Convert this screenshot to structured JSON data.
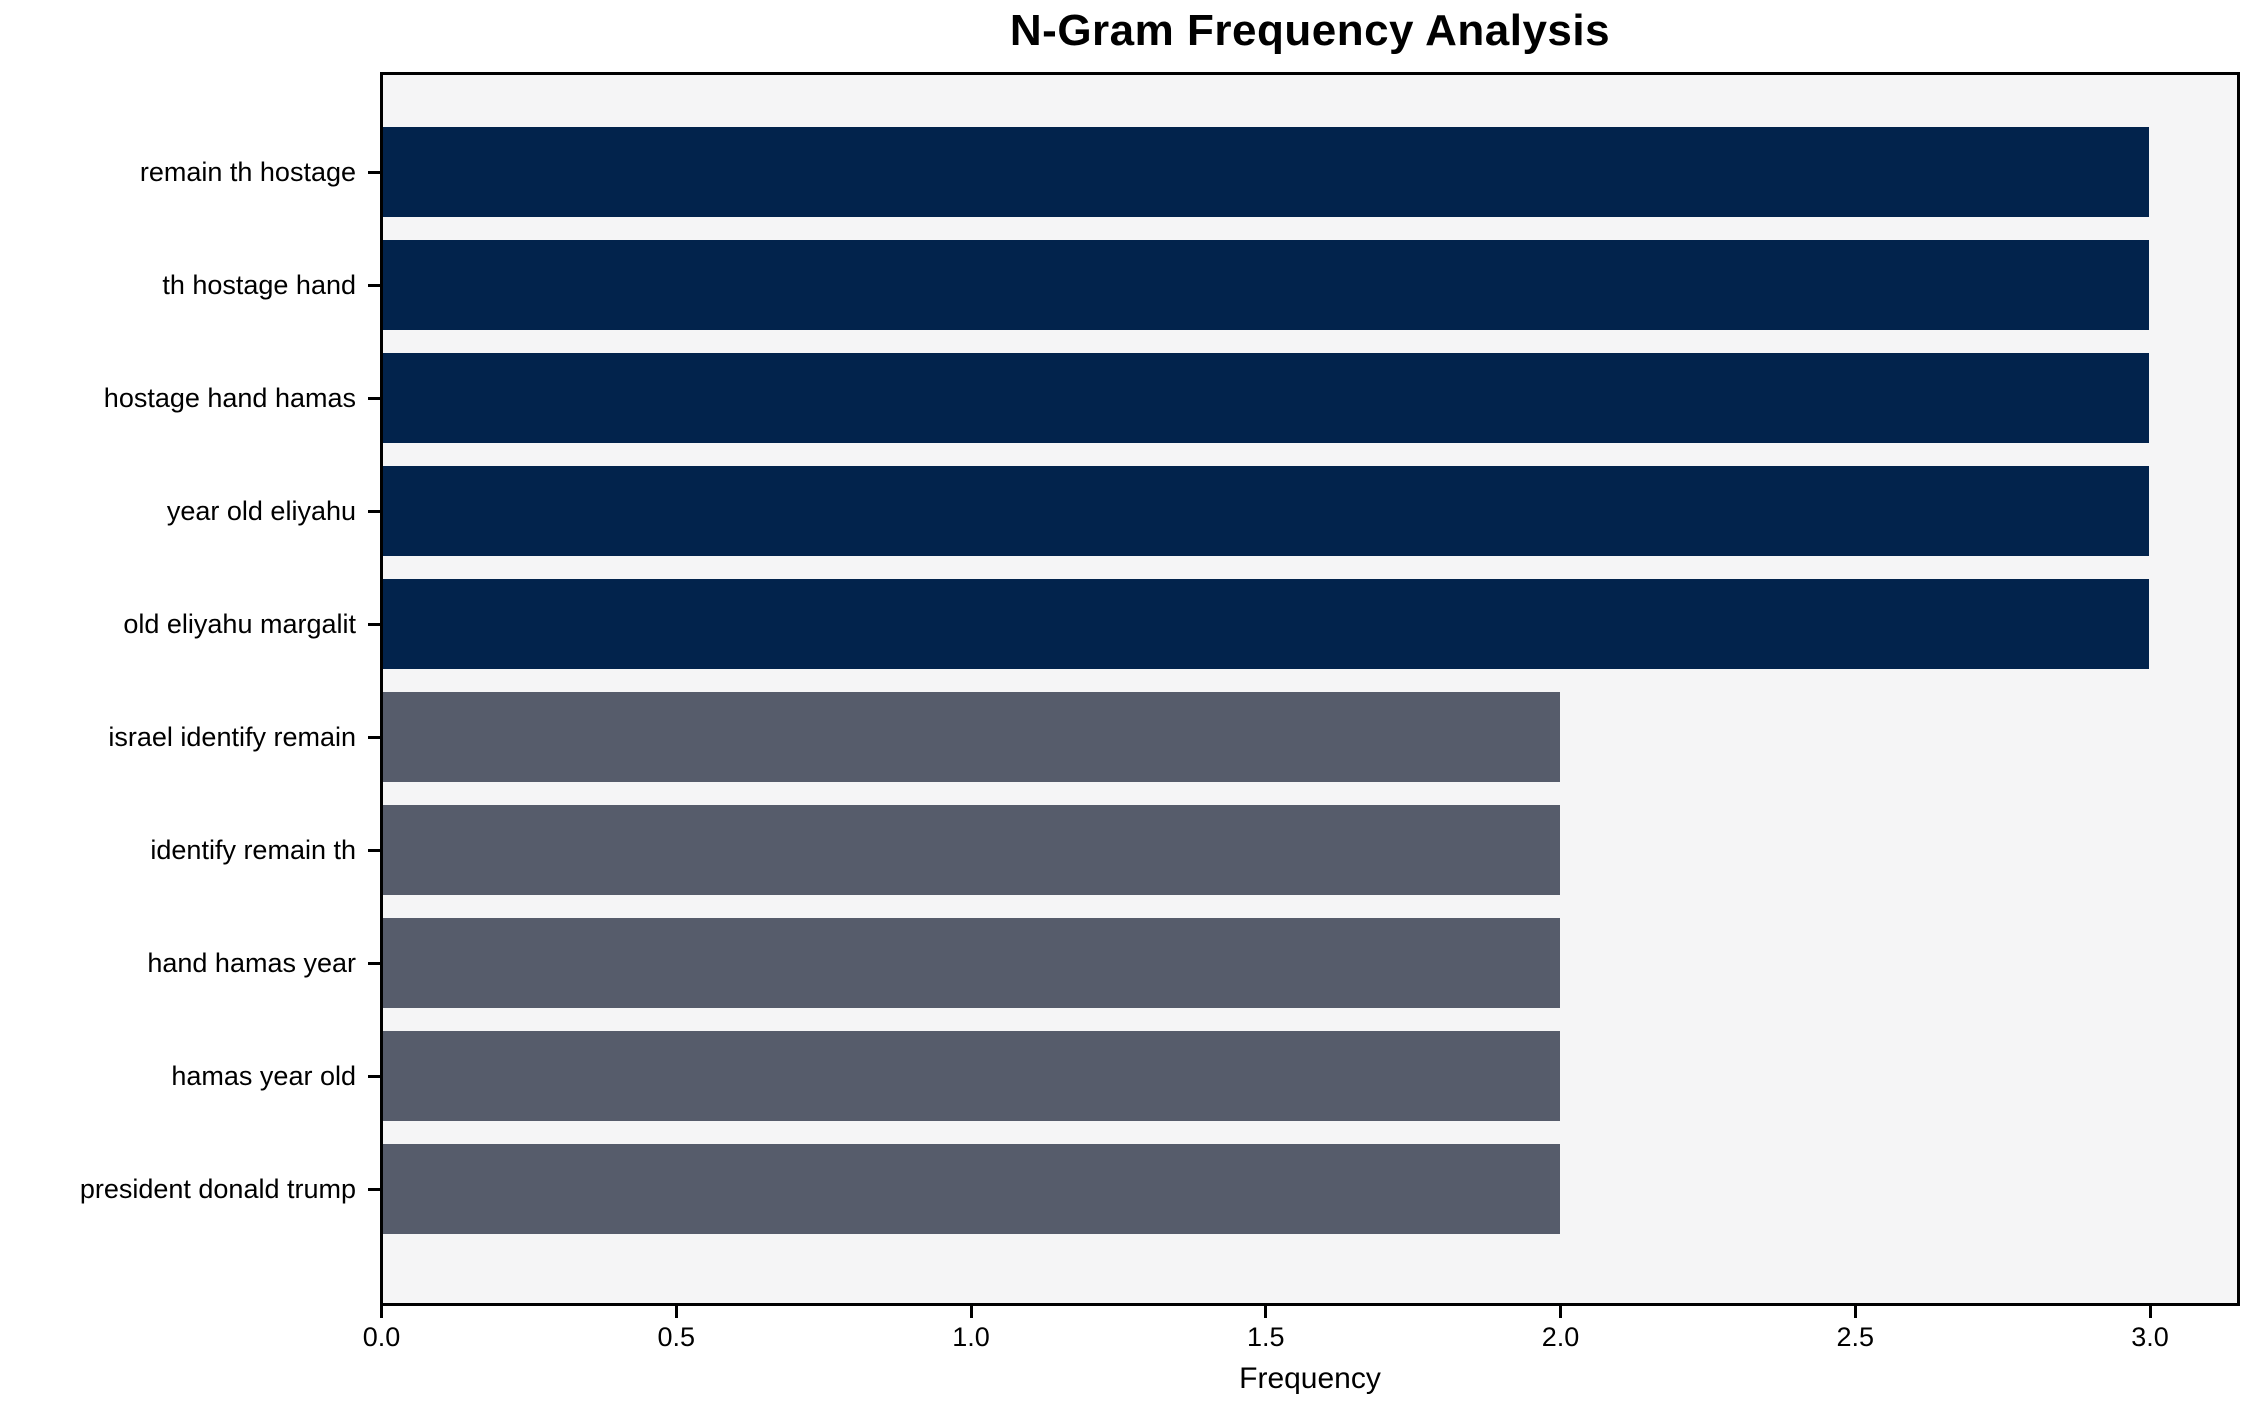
{
  "title": "N-Gram Frequency Analysis",
  "chart_data": {
    "type": "bar",
    "orientation": "horizontal",
    "title": "N-Gram Frequency Analysis",
    "xlabel": "Frequency",
    "ylabel": "",
    "categories": [
      "remain th hostage",
      "th hostage hand",
      "hostage hand hamas",
      "year old eliyahu",
      "old eliyahu margalit",
      "israel identify remain",
      "identify remain th",
      "hand hamas year",
      "hamas year old",
      "president donald trump"
    ],
    "values": [
      3,
      3,
      3,
      3,
      3,
      2,
      2,
      2,
      2,
      2
    ],
    "bar_colors": [
      "#02234c",
      "#02234c",
      "#02234c",
      "#02234c",
      "#02234c",
      "#565c6b",
      "#565c6b",
      "#565c6b",
      "#565c6b",
      "#565c6b"
    ],
    "xlim": [
      0,
      3.15
    ],
    "xticks": [
      0.0,
      0.5,
      1.0,
      1.5,
      2.0,
      2.5,
      3.0
    ],
    "xtick_labels": [
      "0.0",
      "0.5",
      "1.0",
      "1.5",
      "2.0",
      "2.5",
      "3.0"
    ],
    "grid": false,
    "legend": "none"
  },
  "colors": {
    "figure_bg": "#ffffff",
    "plot_bg": "#f5f5f6",
    "bar_high_freq": "#02234c",
    "bar_low_freq": "#565c6b",
    "spine": "#000000",
    "text": "#000000"
  }
}
